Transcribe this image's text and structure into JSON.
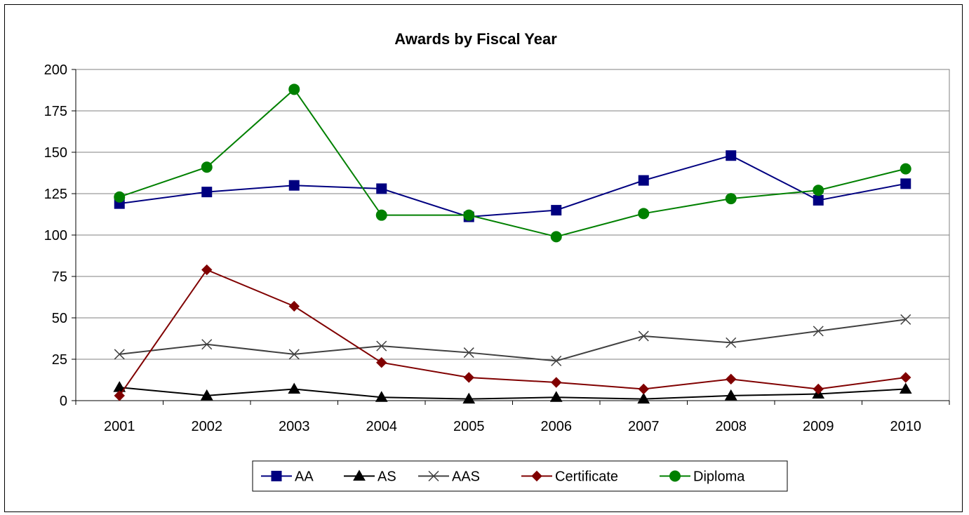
{
  "chart_data": {
    "type": "line",
    "title": "Awards by Fiscal Year",
    "xlabel": "",
    "ylabel": "",
    "categories": [
      "2001",
      "2002",
      "2003",
      "2004",
      "2005",
      "2006",
      "2007",
      "2008",
      "2009",
      "2010"
    ],
    "ylim": [
      0,
      200
    ],
    "yticks": [
      0,
      25,
      50,
      75,
      100,
      125,
      150,
      175,
      200
    ],
    "grid": "horizontal",
    "legend_position": "bottom",
    "series": [
      {
        "name": "AA",
        "color": "#000080",
        "marker": "square",
        "values": [
          119,
          126,
          130,
          128,
          111,
          115,
          133,
          148,
          121,
          131
        ]
      },
      {
        "name": "AS",
        "color": "#000000",
        "marker": "triangle",
        "values": [
          8,
          3,
          7,
          2,
          1,
          2,
          1,
          3,
          4,
          7
        ]
      },
      {
        "name": "AAS",
        "color": "#404040",
        "marker": "x",
        "values": [
          28,
          34,
          28,
          33,
          29,
          24,
          39,
          35,
          42,
          49
        ]
      },
      {
        "name": "Certificate",
        "color": "#800000",
        "marker": "diamond",
        "values": [
          3,
          79,
          57,
          23,
          14,
          11,
          7,
          13,
          7,
          14
        ]
      },
      {
        "name": "Diploma",
        "color": "#008000",
        "marker": "circle",
        "values": [
          123,
          141,
          188,
          112,
          112,
          99,
          113,
          122,
          127,
          140
        ]
      }
    ]
  }
}
